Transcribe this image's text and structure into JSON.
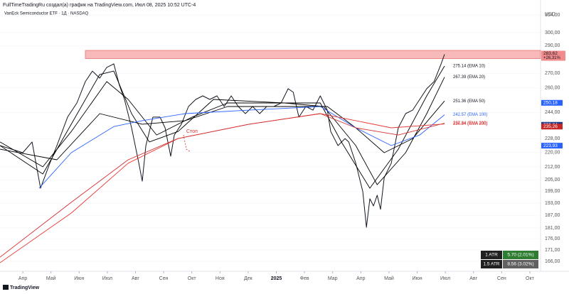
{
  "header": "FullTimeTradingRu создал(а) график на TradingView.com, Июл 08, 2025 10:52 UTC-4",
  "footer": "TradingView",
  "chart_data": {
    "type": "line",
    "title": "VanEck Semiconductor ETF · 1Д · NASDAQ",
    "currency": "USD",
    "log_scale": true,
    "xlim": [
      0.19,
      19.38
    ],
    "xticks": [
      {
        "value": 1,
        "label": "Апр"
      },
      {
        "value": 2,
        "label": "Май"
      },
      {
        "value": 3,
        "label": "Июн"
      },
      {
        "value": 4,
        "label": "Июл"
      },
      {
        "value": 5,
        "label": "Авг"
      },
      {
        "value": 6,
        "label": "Сен"
      },
      {
        "value": 7,
        "label": "Окт"
      },
      {
        "value": 8,
        "label": "Ноя"
      },
      {
        "value": 9,
        "label": "Дек"
      },
      {
        "value": 10,
        "label": "2025"
      },
      {
        "value": 11,
        "label": "Фев"
      },
      {
        "value": 12,
        "label": "Мар"
      },
      {
        "value": 13,
        "label": "Апр"
      },
      {
        "value": 14,
        "label": "Май"
      },
      {
        "value": 15,
        "label": "Июн"
      },
      {
        "value": 16,
        "label": "Июл"
      },
      {
        "value": 17,
        "label": "Авг"
      },
      {
        "value": 18,
        "label": "Сен"
      },
      {
        "value": 19,
        "label": "Окт"
      }
    ],
    "ylim": [
      162.4,
      315.8
    ],
    "yticks": [
      {
        "value": 314,
        "label": "314,00"
      },
      {
        "value": 300,
        "label": "300,00"
      },
      {
        "value": 290,
        "label": "290,00"
      },
      {
        "value": 270,
        "label": "270,00"
      },
      {
        "value": 260,
        "label": "260,00"
      },
      {
        "value": 244,
        "label": "244,00"
      },
      {
        "value": 228,
        "label": "228,00"
      },
      {
        "value": 220,
        "label": "220,00"
      },
      {
        "value": 212,
        "label": "212,00"
      },
      {
        "value": 205,
        "label": "205,00"
      },
      {
        "value": 199,
        "label": "199,00"
      },
      {
        "value": 193,
        "label": "193,00"
      },
      {
        "value": 187,
        "label": "187,00"
      },
      {
        "value": 181,
        "label": "181,00"
      },
      {
        "value": 176,
        "label": "176,00"
      },
      {
        "value": 171,
        "label": "171,00"
      },
      {
        "value": 166,
        "label": "166,00"
      }
    ],
    "resistance_zone": {
      "x": 3.22,
      "ylim": [
        280.5,
        286.5
      ],
      "color": "#f28b8b"
    },
    "price_tag": {
      "value": 283.62,
      "label": "283,62",
      "change": "+26,31%"
    },
    "value_tags": [
      {
        "value": 250.18,
        "label": "250,18",
        "color": "#2962ff"
      },
      {
        "value": 236.34,
        "label": "236,34",
        "color": "#1e3a8a"
      },
      {
        "value": 235.26,
        "label": "235,26",
        "color": "#c62828"
      },
      {
        "value": 223.93,
        "label": "223,93",
        "color": "#2962ff"
      }
    ],
    "annotation": "Стоп",
    "series": [
      {
        "name": "price",
        "color": "#131722",
        "x": [
          0.19,
          1.0,
          1.33,
          1.63,
          1.96,
          2.21,
          2.59,
          2.92,
          3.22,
          3.47,
          3.73,
          3.98,
          4.23,
          4.43,
          4.61,
          4.86,
          5.12,
          5.24,
          5.37,
          5.62,
          5.87,
          6.05,
          6.25,
          6.38,
          6.63,
          6.88,
          7.14,
          7.39,
          7.64,
          7.89,
          8.15,
          8.4,
          8.65,
          8.9,
          9.16,
          9.41,
          9.66,
          9.91,
          10.17,
          10.42,
          10.6,
          10.8,
          11.05,
          11.3,
          11.56,
          11.81,
          11.93,
          12.19,
          12.44,
          12.57,
          12.82,
          13.07,
          13.2,
          13.32,
          13.45,
          13.58,
          13.7,
          13.83,
          14.08,
          14.33,
          14.59,
          14.84,
          15.09,
          15.34,
          15.6,
          15.85,
          15.97
        ],
        "values": [
          224.0,
          219.9,
          226.1,
          200.6,
          214.0,
          224.0,
          241.1,
          250.1,
          264.3,
          271.6,
          266.7,
          274.2,
          276.7,
          261.8,
          252.4,
          234.5,
          214.0,
          204.3,
          224.0,
          241.1,
          241.1,
          234.5,
          217.9,
          230.2,
          236.7,
          247.8,
          252.4,
          254.7,
          252.4,
          254.7,
          247.8,
          254.7,
          247.8,
          243.3,
          247.8,
          243.3,
          247.8,
          247.8,
          250.1,
          259.5,
          257.1,
          241.1,
          247.8,
          245.5,
          254.7,
          245.5,
          232.3,
          224.0,
          228.1,
          226.1,
          214.0,
          198.8,
          181.3,
          195.2,
          191.6,
          197.0,
          189.9,
          206.2,
          214.0,
          234.5,
          243.3,
          245.5,
          252.4,
          259.5,
          264.3,
          276.7,
          283.62
        ]
      },
      {
        "name": "275.14 (EMA 10)",
        "color": "#000000",
        "x": [
          0.19,
          1.71,
          2.72,
          3.73,
          4.23,
          4.86,
          5.49,
          6.51,
          7.77,
          10.29,
          11.56,
          12.31,
          13.32,
          14.33,
          15.34,
          15.97
        ],
        "values": [
          224.0,
          208.1,
          236.7,
          269.2,
          271.6,
          243.3,
          226.1,
          232.3,
          252.4,
          250.1,
          250.1,
          226.1,
          200.6,
          221.9,
          254.7,
          275.14
        ]
      },
      {
        "name": "267.39 (EMA 20)",
        "color": "#000000",
        "x": [
          0.19,
          1.71,
          2.72,
          3.98,
          4.74,
          5.75,
          7.01,
          8.27,
          10.29,
          11.68,
          12.82,
          13.58,
          14.59,
          15.34,
          15.97
        ],
        "values": [
          226.1,
          212.0,
          232.3,
          264.3,
          252.4,
          230.2,
          241.1,
          250.1,
          250.1,
          247.8,
          224.0,
          202.4,
          219.9,
          243.3,
          267.39
        ]
      },
      {
        "name": "251.36 (EMA 50)",
        "color": "#000000",
        "x": [
          0.19,
          2.21,
          3.73,
          5.24,
          6.76,
          8.27,
          10.8,
          11.81,
          12.82,
          13.83,
          14.84,
          15.97
        ],
        "values": [
          221.9,
          215.9,
          243.3,
          236.7,
          238.9,
          247.8,
          247.8,
          247.8,
          234.5,
          219.9,
          228.1,
          251.36
        ]
      },
      {
        "name": "242.57 (EMA 100)",
        "color": "#2962ff",
        "x": [
          1.58,
          2.72,
          4.23,
          5.24,
          6.76,
          9.03,
          11.56,
          12.82,
          14.08,
          15.09,
          15.97
        ],
        "values": [
          200.6,
          219.9,
          235.3,
          238.9,
          243.3,
          245.5,
          247.8,
          234.5,
          224.0,
          230.2,
          242.57
        ]
      },
      {
        "name": "236.84 (SMA 200)",
        "color": "#e53935",
        "x": [
          0.19,
          2.72,
          4.74,
          6.51,
          9.03,
          11.56,
          12.82,
          14.08,
          15.97
        ],
        "values": [
          165.4,
          188.1,
          214.0,
          228.1,
          236.7,
          243.3,
          238.9,
          234.5,
          236.84
        ]
      },
      {
        "name": "237.34 (EMA 200)",
        "color": "#d32f2f",
        "x": [
          0.19,
          2.72,
          4.74,
          6.51,
          9.03,
          11.56,
          12.82,
          14.33,
          15.97
        ],
        "values": [
          167.8,
          193.4,
          215.9,
          228.1,
          236.7,
          243.3,
          234.5,
          230.2,
          237.34
        ]
      }
    ],
    "atr": [
      {
        "label": "1 ATR",
        "value": "5.70 (2.01%)",
        "color": "#2e7d32"
      },
      {
        "label": "1.5 ATR",
        "value": "8.56 (3.02%)",
        "color": "#616161"
      }
    ]
  }
}
